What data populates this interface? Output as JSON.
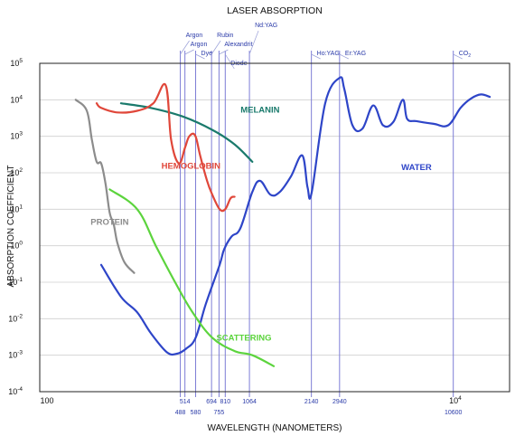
{
  "chart_data": {
    "type": "line",
    "title": "LASER ABSORPTION",
    "xlabel": "WAVELENGTH (NANOMETERS)",
    "ylabel": "ABSORPTION COEFFICIENT",
    "x_scale": "log",
    "y_scale": "log",
    "xlim": [
      100,
      20000
    ],
    "ylim": [
      0.0001,
      100000
    ],
    "grid": true,
    "y_ticks": [
      {
        "value": 0.0001,
        "base": "10",
        "exp": "-4"
      },
      {
        "value": 0.001,
        "base": "10",
        "exp": "-3"
      },
      {
        "value": 0.01,
        "base": "10",
        "exp": "-2"
      },
      {
        "value": 0.1,
        "base": "10",
        "exp": "-1"
      },
      {
        "value": 1,
        "base": "10",
        "exp": "0"
      },
      {
        "value": 10,
        "base": "10",
        "exp": "1"
      },
      {
        "value": 100,
        "base": "10",
        "exp": "2"
      },
      {
        "value": 1000,
        "base": "10",
        "exp": "3"
      },
      {
        "value": 10000,
        "base": "10",
        "exp": "4"
      },
      {
        "value": 100000,
        "base": "10",
        "exp": "5"
      }
    ],
    "x_ticks": [
      {
        "value": 100,
        "base": "100",
        "exp": ""
      },
      {
        "value": 10000,
        "base": "10",
        "exp": "4"
      }
    ],
    "laser_lines": [
      {
        "wavelength": 488,
        "label": "488",
        "row": "low"
      },
      {
        "wavelength": 514,
        "label": "514",
        "row": "high"
      },
      {
        "wavelength": 580,
        "label": "580",
        "row": "low"
      },
      {
        "wavelength": 694,
        "label": "694",
        "row": "high"
      },
      {
        "wavelength": 755,
        "label": "755",
        "row": "low"
      },
      {
        "wavelength": 810,
        "label": "810",
        "row": "high"
      },
      {
        "wavelength": 1064,
        "label": "1064",
        "row": "high"
      },
      {
        "wavelength": 2140,
        "label": "2140",
        "row": "high"
      },
      {
        "wavelength": 2940,
        "label": "2940",
        "row": "high"
      },
      {
        "wavelength": 10600,
        "label": "10600",
        "row": "low"
      }
    ],
    "laser_names": [
      {
        "text": "Argon",
        "wavelength": 488,
        "level": 1
      },
      {
        "text": "Argon",
        "wavelength": 514,
        "level": 2
      },
      {
        "text": "Dye",
        "wavelength": 580,
        "level": 3
      },
      {
        "text": "Rubin",
        "wavelength": 694,
        "level": 1
      },
      {
        "text": "Nd:YAG",
        "wavelength": 1064,
        "level": 0
      },
      {
        "text": "Alexandrit",
        "wavelength": 755,
        "level": 2
      },
      {
        "text": "Diode",
        "wavelength": 810,
        "level": 4
      },
      {
        "text": "Ho:YAG",
        "wavelength": 2140,
        "level": 3
      },
      {
        "text": "Er:YAG",
        "wavelength": 2940,
        "level": 3
      },
      {
        "text": "CO",
        "sub": "2",
        "wavelength": 10600,
        "level": 3
      }
    ],
    "series": [
      {
        "name": "WATER",
        "color": "#2e45c8",
        "label_at": [
          7000,
          120
        ],
        "points": [
          [
            200,
            0.3
          ],
          [
            250,
            0.04
          ],
          [
            300,
            0.015
          ],
          [
            350,
            0.004
          ],
          [
            420,
            0.0012
          ],
          [
            470,
            0.0011
          ],
          [
            520,
            0.0015
          ],
          [
            580,
            0.003
          ],
          [
            650,
            0.025
          ],
          [
            760,
            0.3
          ],
          [
            800,
            0.8
          ],
          [
            870,
            1.8
          ],
          [
            960,
            3
          ],
          [
            1100,
            30
          ],
          [
            1200,
            60
          ],
          [
            1350,
            25
          ],
          [
            1500,
            30
          ],
          [
            1700,
            80
          ],
          [
            1930,
            300
          ],
          [
            2050,
            40
          ],
          [
            2150,
            30
          ],
          [
            2500,
            8000
          ],
          [
            2940,
            40000
          ],
          [
            3100,
            20000
          ],
          [
            3400,
            2000
          ],
          [
            3800,
            1600
          ],
          [
            4300,
            7000
          ],
          [
            4800,
            2000
          ],
          [
            5400,
            2500
          ],
          [
            6000,
            10000
          ],
          [
            6300,
            3000
          ],
          [
            7000,
            2600
          ],
          [
            8500,
            2200
          ],
          [
            10000,
            2000
          ],
          [
            11500,
            6000
          ],
          [
            13000,
            11000
          ],
          [
            14500,
            14000
          ],
          [
            16000,
            12000
          ]
        ]
      },
      {
        "name": "MELANIN",
        "color": "#1a7a6c",
        "label_at": [
          1200,
          4500
        ],
        "points": [
          [
            250,
            8000
          ],
          [
            350,
            6000
          ],
          [
            500,
            3500
          ],
          [
            700,
            1500
          ],
          [
            900,
            600
          ],
          [
            1100,
            200
          ]
        ]
      },
      {
        "name": "HEMOGLOBIN",
        "color": "#e0473a",
        "label_at": [
          550,
          130
        ],
        "points": [
          [
            190,
            8000
          ],
          [
            200,
            6000
          ],
          [
            240,
            4500
          ],
          [
            300,
            5000
          ],
          [
            360,
            8000
          ],
          [
            414,
            25000
          ],
          [
            440,
            800
          ],
          [
            480,
            180
          ],
          [
            515,
            500
          ],
          [
            540,
            1000
          ],
          [
            577,
            1050
          ],
          [
            610,
            300
          ],
          [
            660,
            60
          ],
          [
            700,
            25
          ],
          [
            760,
            10
          ],
          [
            810,
            10
          ],
          [
            860,
            20
          ],
          [
            900,
            22
          ]
        ]
      },
      {
        "name": "PROTEIN",
        "color": "#8c8c8c",
        "label_at": [
          220,
          3.8
        ],
        "points": [
          [
            150,
            10000
          ],
          [
            170,
            5000
          ],
          [
            180,
            800
          ],
          [
            190,
            200
          ],
          [
            200,
            180
          ],
          [
            210,
            50
          ],
          [
            220,
            8
          ],
          [
            230,
            4
          ],
          [
            240,
            1.2
          ],
          [
            260,
            0.35
          ],
          [
            290,
            0.18
          ]
        ]
      },
      {
        "name": "SCATTERING",
        "color": "#5cd43d",
        "label_at": [
          1000,
          0.0025
        ],
        "points": [
          [
            220,
            35
          ],
          [
            300,
            10
          ],
          [
            370,
            1
          ],
          [
            460,
            0.1
          ],
          [
            560,
            0.015
          ],
          [
            700,
            0.003
          ],
          [
            900,
            0.0013
          ],
          [
            1100,
            0.001
          ],
          [
            1400,
            0.0005
          ]
        ]
      }
    ]
  }
}
